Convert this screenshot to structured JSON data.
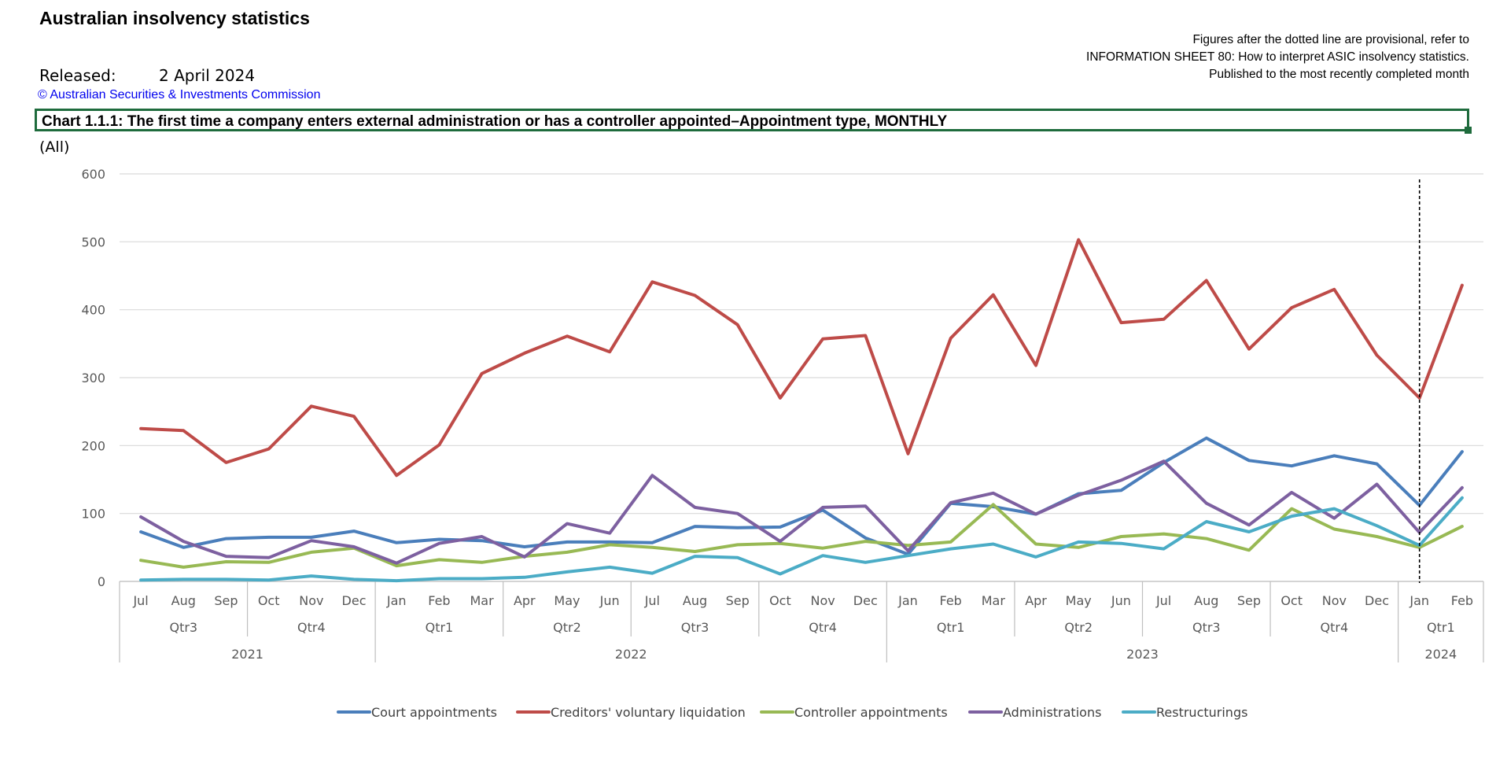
{
  "header": {
    "title": "Australian insolvency statistics",
    "released_label": "Released:",
    "released_date": "2 April 2024",
    "copyright": "© Australian Securities & Investments Commission",
    "filter": "(All)"
  },
  "notes": [
    "Figures after the dotted line are provisional, refer to",
    "INFORMATION SHEET 80: How to interpret ASIC insolvency statistics.",
    "Published to the most recently completed month"
  ],
  "chart_title": "Chart 1.1.1:  The first time a company enters external administration or has a controller appointed–Appointment type, MONTHLY",
  "chart_data": {
    "type": "line",
    "title": "Chart 1.1.1:  The first time a company enters external administration or has a controller appointed–Appointment type, MONTHLY",
    "xlabel": "",
    "ylabel": "",
    "ylim": [
      0,
      600
    ],
    "yticks": [
      "0",
      "100",
      "200",
      "300",
      "400",
      "500",
      "600"
    ],
    "grid": true,
    "legend_position": "bottom",
    "categories": [
      "Jul",
      "Aug",
      "Sep",
      "Oct",
      "Nov",
      "Dec",
      "Jan",
      "Feb",
      "Mar",
      "Apr",
      "May",
      "Jun",
      "Jul",
      "Aug",
      "Sep",
      "Oct",
      "Nov",
      "Dec",
      "Jan",
      "Feb",
      "Mar",
      "Apr",
      "May",
      "Jun",
      "Jul",
      "Aug",
      "Sep",
      "Oct",
      "Nov",
      "Dec",
      "Jan",
      "Feb"
    ],
    "quarters": [
      {
        "label": "Qtr3",
        "span": 3
      },
      {
        "label": "Qtr4",
        "span": 3
      },
      {
        "label": "Qtr1",
        "span": 3
      },
      {
        "label": "Qtr2",
        "span": 3
      },
      {
        "label": "Qtr3",
        "span": 3
      },
      {
        "label": "Qtr4",
        "span": 3
      },
      {
        "label": "Qtr1",
        "span": 3
      },
      {
        "label": "Qtr2",
        "span": 3
      },
      {
        "label": "Qtr3",
        "span": 3
      },
      {
        "label": "Qtr4",
        "span": 3
      },
      {
        "label": "Qtr1",
        "span": 2
      }
    ],
    "years": [
      {
        "label": "2021",
        "span": 6
      },
      {
        "label": "2022",
        "span": 12
      },
      {
        "label": "2023",
        "span": 12
      },
      {
        "label": "2024",
        "span": 2
      }
    ],
    "provisional_from_index": 30,
    "series": [
      {
        "name": "Court appointments",
        "color": "#4a7ebb",
        "values": [
          73,
          50,
          63,
          65,
          65,
          74,
          57,
          62,
          60,
          51,
          58,
          58,
          57,
          81,
          79,
          80,
          105,
          64,
          40,
          115,
          110,
          99,
          129,
          134,
          175,
          211,
          178,
          170,
          185,
          173,
          112,
          191
        ]
      },
      {
        "name": "Creditors' voluntary liquidation",
        "color": "#be4b48",
        "values": [
          225,
          222,
          175,
          195,
          258,
          243,
          156,
          201,
          306,
          336,
          361,
          338,
          441,
          421,
          378,
          270,
          357,
          362,
          188,
          358,
          422,
          318,
          503,
          381,
          386,
          443,
          342,
          403,
          430,
          333,
          270,
          436
        ]
      },
      {
        "name": "Controller appointments",
        "color": "#98b954",
        "values": [
          31,
          21,
          29,
          28,
          43,
          49,
          23,
          32,
          28,
          37,
          43,
          54,
          50,
          44,
          54,
          56,
          49,
          59,
          53,
          58,
          113,
          55,
          50,
          66,
          70,
          63,
          46,
          107,
          77,
          66,
          50,
          81
        ]
      },
      {
        "name": "Administrations",
        "color": "#7d60a0",
        "values": [
          95,
          59,
          37,
          35,
          60,
          51,
          27,
          56,
          66,
          36,
          85,
          71,
          156,
          109,
          100,
          59,
          109,
          111,
          45,
          116,
          130,
          99,
          127,
          149,
          177,
          115,
          83,
          131,
          93,
          143,
          72,
          138
        ]
      },
      {
        "name": "Restructurings",
        "color": "#4bacc6",
        "values": [
          2,
          3,
          3,
          2,
          8,
          3,
          1,
          4,
          4,
          6,
          14,
          21,
          12,
          37,
          35,
          11,
          38,
          28,
          38,
          48,
          55,
          36,
          58,
          56,
          48,
          88,
          73,
          96,
          107,
          82,
          53,
          123
        ]
      }
    ]
  }
}
